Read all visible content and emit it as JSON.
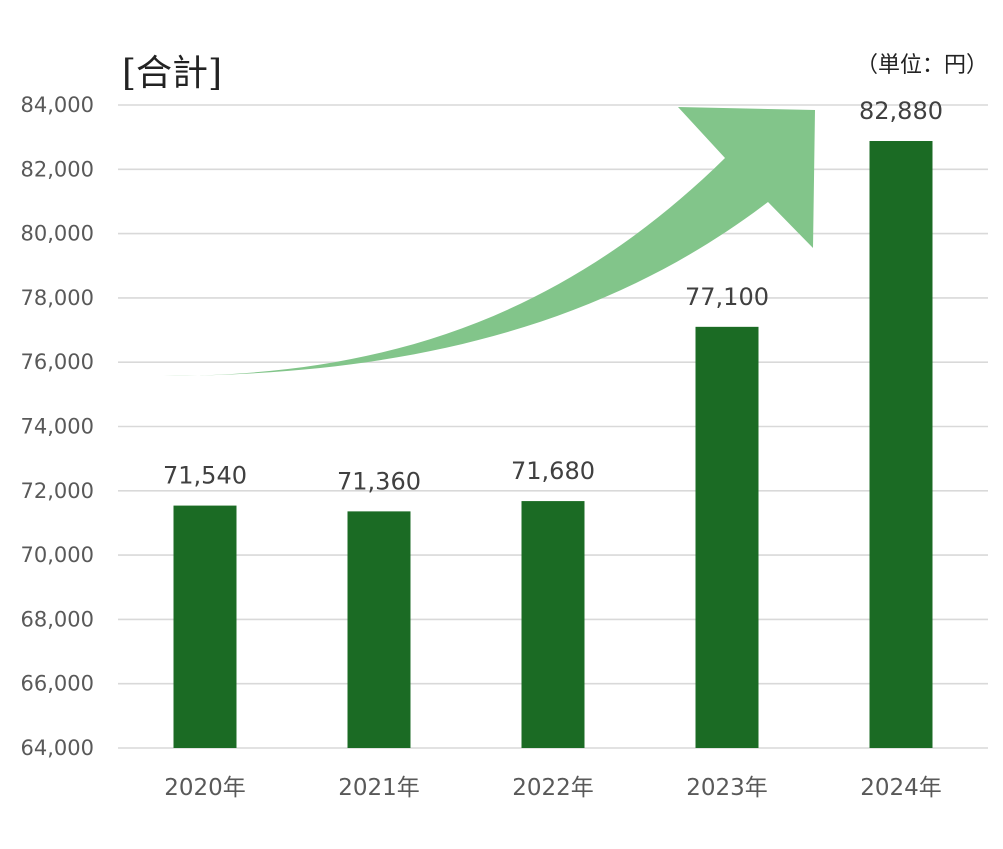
{
  "chart_data": {
    "type": "bar",
    "title": "[合計]",
    "unit_label": "（単位：円）",
    "categories": [
      "2020年",
      "2021年",
      "2022年",
      "2023年",
      "2024年"
    ],
    "values": [
      71540,
      71360,
      71680,
      77100,
      82880
    ],
    "value_labels": [
      "71,540",
      "71,360",
      "71,680",
      "77,100",
      "82,880"
    ],
    "ylim": [
      64000,
      84000
    ],
    "yticks": [
      64000,
      66000,
      68000,
      70000,
      72000,
      74000,
      76000,
      78000,
      80000,
      82000,
      84000
    ],
    "ytick_labels": [
      "64,000",
      "66,000",
      "68,000",
      "70,000",
      "72,000",
      "74,000",
      "76,000",
      "78,000",
      "80,000",
      "82,000",
      "84,000"
    ],
    "grid": true,
    "decoration": "upward-trend-arrow",
    "colors": {
      "bar": "#1b6b24",
      "arrow": "#82c58a",
      "grid": "#d9d9d9",
      "tick_text": "#595959",
      "value_text": "#404040"
    }
  }
}
